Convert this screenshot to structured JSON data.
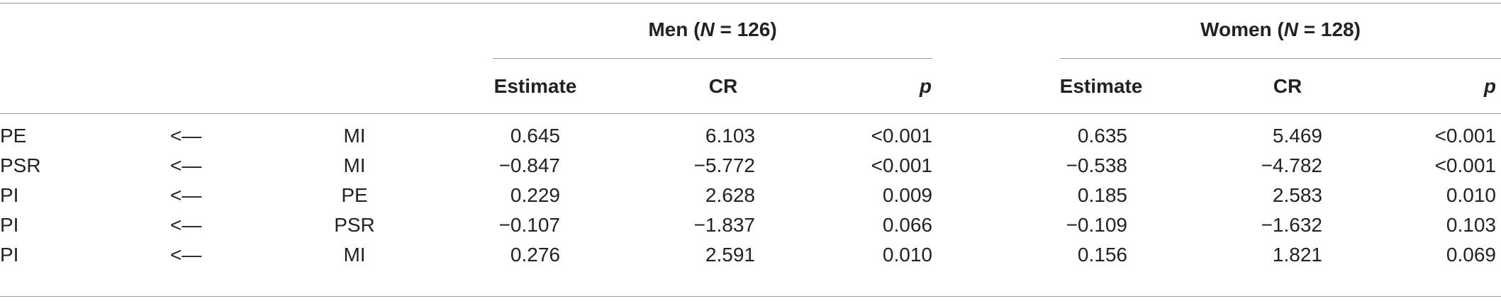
{
  "groups": [
    {
      "label_pre": "Men (",
      "label_n": "N",
      "label_post": " = 126)"
    },
    {
      "label_pre": "Women (",
      "label_n": "N",
      "label_post": " = 128)"
    }
  ],
  "subheaders": {
    "estimate": "Estimate",
    "cr": "CR",
    "p": "p"
  },
  "rows": [
    {
      "dv": "PE",
      "arrow": "<—",
      "iv": "MI",
      "men": [
        "0.645",
        "6.103",
        "<0.001"
      ],
      "women": [
        "0.635",
        "5.469",
        "<0.001"
      ]
    },
    {
      "dv": "PSR",
      "arrow": "<—",
      "iv": "MI",
      "men": [
        "−0.847",
        "−5.772",
        "<0.001"
      ],
      "women": [
        "−0.538",
        "−4.782",
        "<0.001"
      ]
    },
    {
      "dv": "PI",
      "arrow": "<—",
      "iv": "PE",
      "men": [
        "0.229",
        "2.628",
        "0.009"
      ],
      "women": [
        "0.185",
        "2.583",
        "0.010"
      ]
    },
    {
      "dv": "PI",
      "arrow": "<—",
      "iv": "PSR",
      "men": [
        "−0.107",
        "−1.837",
        "0.066"
      ],
      "women": [
        "−0.109",
        "−1.632",
        "0.103"
      ]
    },
    {
      "dv": "PI",
      "arrow": "<—",
      "iv": "MI",
      "men": [
        "0.276",
        "2.591",
        "0.010"
      ],
      "women": [
        "0.156",
        "1.821",
        "0.069"
      ]
    }
  ]
}
